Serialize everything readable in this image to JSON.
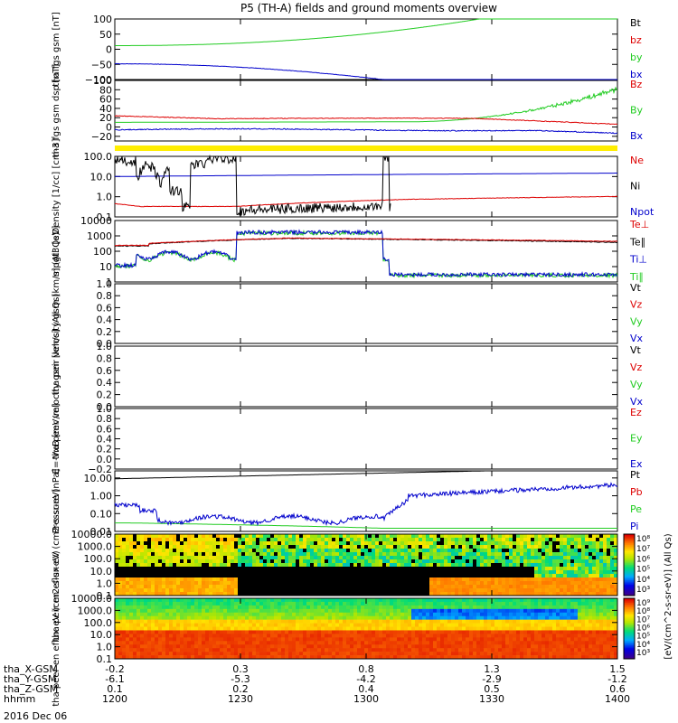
{
  "title": "P5 (TH-A) fields and ground moments overview",
  "date_label": "2016 Dec 06",
  "colors": {
    "black": "#000000",
    "red": "#dd0000",
    "green": "#22cc22",
    "blue": "#0000cc",
    "yellow": "#ffee00",
    "ylabelblue": "#0000cc"
  },
  "chart_data": [
    {
      "type": "line",
      "ylabel": "tha fgs gsm [nT]",
      "ylim": [
        -100,
        100
      ],
      "yticks": [
        "100",
        "50",
        "0",
        "−50",
        "−100"
      ],
      "ytick_values": [
        100,
        50,
        0,
        -50,
        -100
      ],
      "legend": [
        {
          "name": "Bt",
          "color": "#000000"
        },
        {
          "name": "bz",
          "color": "#dd0000"
        },
        {
          "name": "by",
          "color": "#22cc22"
        },
        {
          "name": "bx",
          "color": "#0000cc"
        }
      ]
    },
    {
      "type": "line",
      "ylabel": "tha fgs gsm dsp [nT]",
      "ylim": [
        -30,
        100
      ],
      "yticks": [
        "100",
        "80",
        "60",
        "40",
        "20",
        "0",
        "−20"
      ],
      "ytick_values": [
        100,
        80,
        60,
        40,
        20,
        0,
        -20
      ],
      "legend": [
        {
          "name": "Bz",
          "color": "#dd0000"
        },
        {
          "name": "By",
          "color": "#22cc22"
        },
        {
          "name": "Bx",
          "color": "#0000cc"
        }
      ]
    },
    {
      "type": "line",
      "ylabel": "Density [1/cc] [cm-3]",
      "ylim": [
        0.1,
        100
      ],
      "scale": "log",
      "yticks": [
        "100.0",
        "10.0",
        "1.0",
        "0.1"
      ],
      "ytick_values": [
        100,
        10,
        1,
        0.1
      ],
      "legend": [
        {
          "name": "Ne",
          "color": "#dd0000"
        },
        {
          "name": "Ni",
          "color": "#000000"
        },
        {
          "name": "Npot",
          "color": "#0000cc"
        }
      ]
    },
    {
      "type": "line",
      "ylabel": "mpgt3 [eV]",
      "ylim": [
        1,
        10000
      ],
      "scale": "log",
      "yticks": [
        "10000",
        "1000",
        "100",
        "10",
        "1"
      ],
      "ytick_values": [
        10000,
        1000,
        100,
        10,
        1
      ],
      "legend": [
        {
          "name": "Te⊥",
          "color": "#dd0000"
        },
        {
          "name": "Te∥",
          "color": "#000000"
        },
        {
          "name": "Ti⊥",
          "color": "#0000cc"
        },
        {
          "name": "Ti∥",
          "color": "#22cc22"
        }
      ]
    },
    {
      "type": "line",
      "ylabel": "tha peir velocity gsm [km/s] (All Qs)",
      "ylim": [
        0,
        1
      ],
      "yticks": [
        "1.0",
        "0.8",
        "0.6",
        "0.4",
        "0.2",
        "0.0"
      ],
      "ytick_values": [
        1,
        0.8,
        0.6,
        0.4,
        0.2,
        0
      ],
      "legend": [
        {
          "name": "Vt",
          "color": "#000000"
        },
        {
          "name": "Vz",
          "color": "#dd0000"
        },
        {
          "name": "Vy",
          "color": "#22cc22"
        },
        {
          "name": "Vx",
          "color": "#0000cc"
        }
      ]
    },
    {
      "type": "line",
      "ylabel": "tha peer velocity gsm [km/s] (All Qs)",
      "ylim": [
        0,
        1
      ],
      "yticks": [
        "1.0",
        "0.8",
        "0.6",
        "0.4",
        "0.2",
        "0.0"
      ],
      "ytick_values": [
        1,
        0.8,
        0.6,
        0.4,
        0.2,
        0
      ],
      "legend": [
        {
          "name": "Vt",
          "color": "#000000"
        },
        {
          "name": "Vz",
          "color": "#dd0000"
        },
        {
          "name": "Vy",
          "color": "#22cc22"
        },
        {
          "name": "Vx",
          "color": "#0000cc"
        }
      ]
    },
    {
      "type": "line",
      "ylabel": "E=-VxB [mV/m]",
      "ylim": [
        -0.2,
        1
      ],
      "yticks": [
        "1.0",
        "0.8",
        "0.6",
        "0.4",
        "0.2",
        "0.0",
        "−0.2"
      ],
      "ytick_values": [
        1,
        0.8,
        0.6,
        0.4,
        0.2,
        0,
        -0.2
      ],
      "legend": [
        {
          "name": "Ez",
          "color": "#dd0000"
        },
        {
          "name": "Ey",
          "color": "#22cc22"
        },
        {
          "name": "Ex",
          "color": "#0000cc"
        }
      ]
    },
    {
      "type": "line",
      "ylabel": "Pressure [nPa]",
      "ylim": [
        0.01,
        25
      ],
      "scale": "log",
      "yticks": [
        "10.00",
        "1.00",
        "0.10",
        "0.01"
      ],
      "ytick_values": [
        10,
        1,
        0.1,
        0.01
      ],
      "legend": [
        {
          "name": "Pt",
          "color": "#000000"
        },
        {
          "name": "Pb",
          "color": "#dd0000"
        },
        {
          "name": "Pe",
          "color": "#22cc22"
        },
        {
          "name": "Pi",
          "color": "#0000cc"
        }
      ]
    },
    {
      "type": "heatmap",
      "ylabel": "tha peir en eflux eV (cm2-s-sr-eV)",
      "ylim": [
        0.1,
        10000
      ],
      "scale": "log",
      "yticks": [
        "10000.0",
        "1000.0",
        "100.0",
        "10.0",
        "1.0",
        "0.1"
      ],
      "ytick_values": [
        10000,
        1000,
        100,
        10,
        1,
        0.1
      ],
      "colorbar": {
        "label": "[eV/(cm^2-s-sr-eV)] (All Qs)",
        "ticks": [
          "10⁸",
          "10⁷",
          "10⁶",
          "10⁵",
          "10⁴",
          "10³"
        ]
      }
    },
    {
      "type": "heatmap",
      "ylabel": "tha peer en eflux eV (cm2-s-sr-eV)",
      "ylim": [
        0.1,
        10000
      ],
      "scale": "log",
      "yticks": [
        "10000.0",
        "1000.0",
        "100.0",
        "10.0",
        "1.0",
        "0.1"
      ],
      "ytick_values": [
        10000,
        1000,
        100,
        10,
        1,
        0.1
      ],
      "colorbar": {
        "label": "[eV/(cm^2-s-sr-eV)] (All Qs)",
        "ticks": [
          "10⁹",
          "10⁸",
          "10⁷",
          "10⁶",
          "10⁵",
          "10⁴",
          "10³"
        ]
      }
    }
  ],
  "xaxis": {
    "rows": [
      {
        "label": "tha_X-GSM",
        "values": [
          "-0.2",
          "0.3",
          "0.8",
          "1.3",
          "1.5"
        ]
      },
      {
        "label": "tha_Y-GSM",
        "values": [
          "-6.1",
          "-5.3",
          "-4.2",
          "-2.9",
          "-1.2"
        ]
      },
      {
        "label": "tha_Z-GSM",
        "values": [
          "0.1",
          "0.2",
          "0.4",
          "0.5",
          "0.6"
        ]
      },
      {
        "label": "hhmm",
        "values": [
          "1200",
          "1230",
          "1300",
          "1330",
          "1400"
        ]
      }
    ],
    "tick_times_min": [
      0,
      30,
      60,
      90,
      120
    ]
  }
}
